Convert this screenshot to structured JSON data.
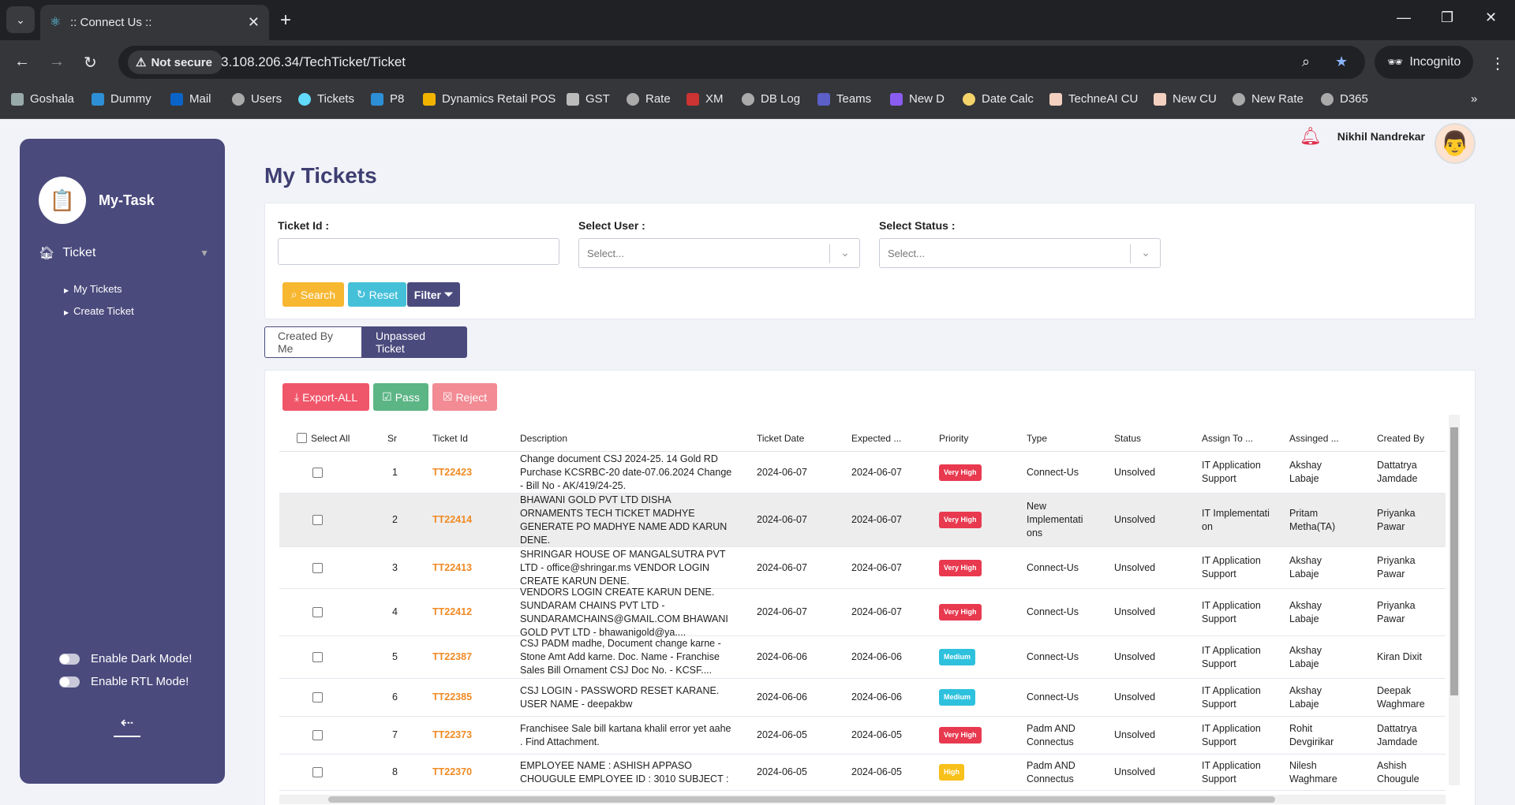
{
  "browser": {
    "tab_title": ":: Connect Us ::",
    "not_secure": "Not secure",
    "url": "3.108.206.34/TechTicket/Ticket",
    "incognito": "Incognito",
    "bookmarks": [
      "Goshala",
      "Dummy",
      "Mail",
      "Users",
      "Tickets",
      "P8",
      "Dynamics Retail POS",
      "GST",
      "Rate",
      "XM",
      "DB Log",
      "Teams",
      "New D",
      "Date Calc",
      "TechneAI CU",
      "New CU",
      "New Rate",
      "D365"
    ]
  },
  "sidebar": {
    "brand": "My-Task",
    "menu_ticket": "Ticket",
    "sub_items": [
      "My Tickets",
      "Create Ticket"
    ],
    "dark_mode": "Enable Dark Mode!",
    "rtl_mode": "Enable RTL Mode!"
  },
  "header": {
    "user_name": "Nikhil Nandrekar"
  },
  "page_title": "My Tickets",
  "filters": {
    "ticket_id_label": "Ticket Id :",
    "user_label": "Select User :",
    "status_label": "Select Status :",
    "user_placeholder": "Select...",
    "status_placeholder": "Select...",
    "search": "Search",
    "reset": "Reset",
    "filter": "Filter"
  },
  "tabs": [
    "Created By Me",
    "Unpassed Ticket"
  ],
  "actions": {
    "export": "Export-ALL",
    "pass": "Pass",
    "reject": "Reject"
  },
  "table": {
    "headers": [
      "Select All",
      "Sr",
      "Ticket Id",
      "Description",
      "Ticket Date",
      "Expected ...",
      "Priority",
      "Type",
      "Status",
      "Assign To ...",
      "Assinged ...",
      "Created By"
    ],
    "rows": [
      {
        "sr": "1",
        "id": "TT22423",
        "desc": " Change document CSJ 2024-25. 14 Gold RD Purchase KCSRBC-20 date-07.06.2024 Change - Bill No - AK/419/24-25.",
        "date": "2024-06-07",
        "exp": "2024-06-07",
        "priority": "Very High",
        "type": "Connect-Us",
        "status": "Unsolved",
        "assign": "IT Application Support",
        "assigned": "Akshay Labaje",
        "created": "Dattatrya Jamdade"
      },
      {
        "sr": "2",
        "id": "TT22414",
        "desc": " BHAWANI GOLD PVT LTD DISHA ORNAMENTS TECH TICKET MADHYE GENERATE PO MADHYE NAME ADD KARUN DENE.",
        "date": "2024-06-07",
        "exp": "2024-06-07",
        "priority": "Very High",
        "type": "New Implementati ons",
        "status": "Unsolved",
        "assign": "IT Implementati on",
        "assigned": "Pritam Metha(TA)",
        "created": "Priyanka Pawar"
      },
      {
        "sr": "3",
        "id": "TT22413",
        "desc": " SHRINGAR HOUSE OF MANGALSUTRA PVT LTD - office@shringar.ms VENDOR LOGIN CREATE KARUN DENE.",
        "date": "2024-06-07",
        "exp": "2024-06-07",
        "priority": "Very High",
        "type": "Connect-Us",
        "status": "Unsolved",
        "assign": "IT Application Support",
        "assigned": "Akshay Labaje",
        "created": "Priyanka Pawar"
      },
      {
        "sr": "4",
        "id": "TT22412",
        "desc": " VENDORS LOGIN CREATE KARUN DENE. SUNDARAM CHAINS PVT LTD - SUNDARAMCHAINS@GMAIL.COM BHAWANI GOLD PVT LTD - bhawanigold@ya....",
        "date": "2024-06-07",
        "exp": "2024-06-07",
        "priority": "Very High",
        "type": "Connect-Us",
        "status": "Unsolved",
        "assign": "IT Application Support",
        "assigned": "Akshay Labaje",
        "created": "Priyanka Pawar"
      },
      {
        "sr": "5",
        "id": "TT22387",
        "desc": " CSJ PADM madhe, Document change karne - Stone Amt Add karne. Doc. Name - Franchise Sales Bill Ornament CSJ Doc No. - KCSF....",
        "date": "2024-06-06",
        "exp": "2024-06-06",
        "priority": "Medium",
        "type": "Connect-Us",
        "status": "Unsolved",
        "assign": "IT Application Support",
        "assigned": "Akshay Labaje",
        "created": "Kiran Dixit"
      },
      {
        "sr": "6",
        "id": "TT22385",
        "desc": " CSJ LOGIN - PASSWORD RESET KARANE. USER NAME - deepakbw",
        "date": "2024-06-06",
        "exp": "2024-06-06",
        "priority": "Medium",
        "type": "Connect-Us",
        "status": "Unsolved",
        "assign": "IT Application Support",
        "assigned": "Akshay Labaje",
        "created": "Deepak Waghmare"
      },
      {
        "sr": "7",
        "id": "TT22373",
        "desc": " Franchisee Sale bill kartana khalil error yet aahe . Find Attachment.",
        "date": "2024-06-05",
        "exp": "2024-06-05",
        "priority": "Very High",
        "type": "Padm AND Connectus",
        "status": "Unsolved",
        "assign": "IT Application Support",
        "assigned": "Rohit Devgirikar",
        "created": "Dattatrya Jamdade"
      },
      {
        "sr": "8",
        "id": "TT22370",
        "desc": " EMPLOYEE NAME : ASHISH APPASO CHOUGULE EMPLOYEE ID : 3010 SUBJECT :",
        "date": "2024-06-05",
        "exp": "2024-06-05",
        "priority": "High",
        "type": "Padm AND Connectus",
        "status": "Unsolved",
        "assign": "IT Application Support",
        "assigned": "Nilesh Waghmare",
        "created": "Ashish Chougule"
      }
    ]
  },
  "colors": {
    "sidebar": "#4a4a7d",
    "ticket_id": "#f08a24",
    "very_high": "#e8394f",
    "medium": "#2ec1dd",
    "high": "#f8c01a"
  }
}
